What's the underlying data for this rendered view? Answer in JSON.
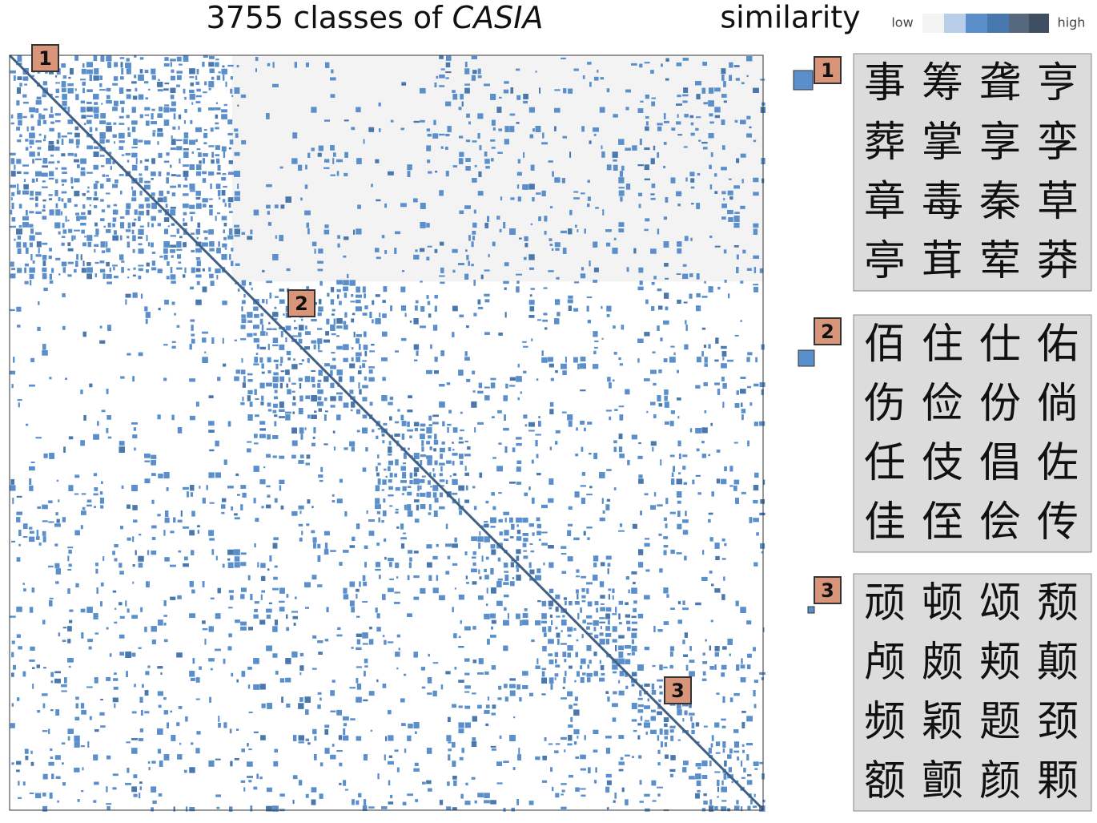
{
  "title": {
    "prefix": "3755 classes of ",
    "emphasis": "CASIA"
  },
  "legend": {
    "title": "similarity",
    "low": "low",
    "high": "high"
  },
  "panels": [
    {
      "badge": "1",
      "characters": [
        [
          "事",
          "筹",
          "聋",
          "亨"
        ],
        [
          "葬",
          "掌",
          "享",
          "孪"
        ],
        [
          "章",
          "毒",
          "秦",
          "草"
        ],
        [
          "亭",
          "茸",
          "荤",
          "莽"
        ]
      ]
    },
    {
      "badge": "2",
      "characters": [
        [
          "佰",
          "住",
          "仕",
          "佑"
        ],
        [
          "伤",
          "俭",
          "份",
          "倘"
        ],
        [
          "任",
          "伎",
          "倡",
          "佐"
        ],
        [
          "佳",
          "侄",
          "侩",
          "传"
        ]
      ]
    },
    {
      "badge": "3",
      "characters": [
        [
          "顽",
          "顿",
          "颂",
          "颓"
        ],
        [
          "颅",
          "颇",
          "颊",
          "颠"
        ],
        [
          "频",
          "颖",
          "题",
          "颈"
        ],
        [
          "额",
          "颤",
          "颜",
          "颗"
        ]
      ]
    }
  ]
}
